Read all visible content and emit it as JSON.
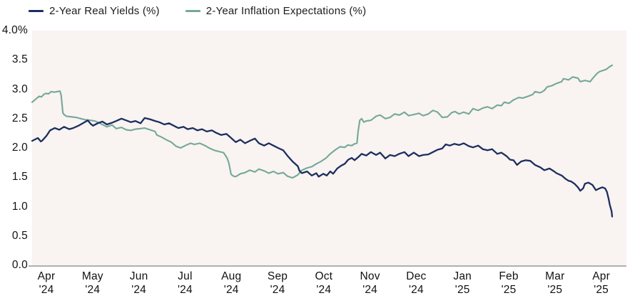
{
  "colors": {
    "navy": "#1b2e5f",
    "teal": "#74a89a",
    "plot_background": "#f9f3f1",
    "axis_line": "#b2aeac",
    "text": "#111111"
  },
  "chart_data": {
    "type": "line",
    "title": "",
    "xlabel": "",
    "ylabel": "",
    "y_unit": "percent",
    "ylim": [
      0.0,
      4.0
    ],
    "grid": false,
    "legend_position": "top-left",
    "x_axis_note": "time axis Apr 2024 through Apr 2025; series x stored as 0-1 fraction of plotted range",
    "x_tick_labels": [
      {
        "month": "Apr",
        "year": "'24"
      },
      {
        "month": "May",
        "year": "'24"
      },
      {
        "month": "Jun",
        "year": "'24"
      },
      {
        "month": "Jul",
        "year": "'24"
      },
      {
        "month": "Aug",
        "year": "'24"
      },
      {
        "month": "Sep",
        "year": "'24"
      },
      {
        "month": "Oct",
        "year": "'24"
      },
      {
        "month": "Nov",
        "year": "'24"
      },
      {
        "month": "Dec",
        "year": "'24"
      },
      {
        "month": "Jan",
        "year": "'25"
      },
      {
        "month": "Feb",
        "year": "'25"
      },
      {
        "month": "Mar",
        "year": "'25"
      },
      {
        "month": "Apr",
        "year": "'25"
      }
    ],
    "y_tick_labels": [
      {
        "text": "4.0%",
        "value": 4.0
      },
      {
        "text": "3.5",
        "value": 3.5
      },
      {
        "text": "3.0",
        "value": 3.0
      },
      {
        "text": "2.5",
        "value": 2.5
      },
      {
        "text": "2.0",
        "value": 2.0
      },
      {
        "text": "1.5",
        "value": 1.5
      },
      {
        "text": "1.0",
        "value": 1.0
      },
      {
        "text": "0.5",
        "value": 0.5
      },
      {
        "text": "0.0",
        "value": 0.0
      }
    ],
    "series": [
      {
        "name": "2-Year Real Yields (%)",
        "color": "#1b2e5f",
        "points": [
          [
            0.0,
            2.12
          ],
          [
            0.006,
            2.15
          ],
          [
            0.01,
            2.17
          ],
          [
            0.015,
            2.11
          ],
          [
            0.018,
            2.13
          ],
          [
            0.025,
            2.21
          ],
          [
            0.031,
            2.3
          ],
          [
            0.039,
            2.34
          ],
          [
            0.047,
            2.31
          ],
          [
            0.055,
            2.36
          ],
          [
            0.064,
            2.32
          ],
          [
            0.071,
            2.34
          ],
          [
            0.08,
            2.38
          ],
          [
            0.089,
            2.43
          ],
          [
            0.096,
            2.47
          ],
          [
            0.101,
            2.41
          ],
          [
            0.105,
            2.38
          ],
          [
            0.113,
            2.42
          ],
          [
            0.121,
            2.45
          ],
          [
            0.129,
            2.4
          ],
          [
            0.138,
            2.43
          ],
          [
            0.145,
            2.46
          ],
          [
            0.154,
            2.5
          ],
          [
            0.162,
            2.47
          ],
          [
            0.17,
            2.44
          ],
          [
            0.178,
            2.46
          ],
          [
            0.187,
            2.42
          ],
          [
            0.194,
            2.51
          ],
          [
            0.203,
            2.49
          ],
          [
            0.212,
            2.46
          ],
          [
            0.219,
            2.44
          ],
          [
            0.228,
            2.4
          ],
          [
            0.236,
            2.42
          ],
          [
            0.244,
            2.38
          ],
          [
            0.252,
            2.34
          ],
          [
            0.261,
            2.36
          ],
          [
            0.268,
            2.32
          ],
          [
            0.277,
            2.34
          ],
          [
            0.285,
            2.3
          ],
          [
            0.293,
            2.32
          ],
          [
            0.301,
            2.28
          ],
          [
            0.31,
            2.3
          ],
          [
            0.317,
            2.26
          ],
          [
            0.326,
            2.22
          ],
          [
            0.335,
            2.24
          ],
          [
            0.342,
            2.18
          ],
          [
            0.351,
            2.1
          ],
          [
            0.359,
            2.14
          ],
          [
            0.367,
            2.08
          ],
          [
            0.375,
            2.12
          ],
          [
            0.384,
            2.16
          ],
          [
            0.391,
            2.08
          ],
          [
            0.4,
            2.04
          ],
          [
            0.408,
            2.08
          ],
          [
            0.416,
            2.04
          ],
          [
            0.424,
            2.0
          ],
          [
            0.433,
            1.96
          ],
          [
            0.44,
            1.87
          ],
          [
            0.449,
            1.77
          ],
          [
            0.458,
            1.69
          ],
          [
            0.461,
            1.61
          ],
          [
            0.465,
            1.57
          ],
          [
            0.474,
            1.6
          ],
          [
            0.482,
            1.53
          ],
          [
            0.49,
            1.57
          ],
          [
            0.494,
            1.51
          ],
          [
            0.502,
            1.56
          ],
          [
            0.508,
            1.53
          ],
          [
            0.514,
            1.6
          ],
          [
            0.519,
            1.56
          ],
          [
            0.526,
            1.65
          ],
          [
            0.533,
            1.7
          ],
          [
            0.539,
            1.73
          ],
          [
            0.545,
            1.8
          ],
          [
            0.551,
            1.83
          ],
          [
            0.556,
            1.79
          ],
          [
            0.563,
            1.85
          ],
          [
            0.568,
            1.9
          ],
          [
            0.576,
            1.87
          ],
          [
            0.584,
            1.93
          ],
          [
            0.593,
            1.88
          ],
          [
            0.6,
            1.92
          ],
          [
            0.609,
            1.82
          ],
          [
            0.617,
            1.88
          ],
          [
            0.625,
            1.86
          ],
          [
            0.633,
            1.9
          ],
          [
            0.642,
            1.93
          ],
          [
            0.649,
            1.86
          ],
          [
            0.658,
            1.92
          ],
          [
            0.667,
            1.86
          ],
          [
            0.674,
            1.88
          ],
          [
            0.683,
            1.89
          ],
          [
            0.691,
            1.93
          ],
          [
            0.699,
            1.97
          ],
          [
            0.707,
            1.99
          ],
          [
            0.713,
            2.06
          ],
          [
            0.72,
            2.04
          ],
          [
            0.728,
            2.07
          ],
          [
            0.736,
            2.05
          ],
          [
            0.744,
            2.08
          ],
          [
            0.753,
            2.03
          ],
          [
            0.76,
            2.01
          ],
          [
            0.769,
            2.04
          ],
          [
            0.777,
            1.98
          ],
          [
            0.785,
            1.96
          ],
          [
            0.793,
            1.98
          ],
          [
            0.802,
            1.9
          ],
          [
            0.809,
            1.92
          ],
          [
            0.818,
            1.86
          ],
          [
            0.824,
            1.8
          ],
          [
            0.83,
            1.79
          ],
          [
            0.836,
            1.71
          ],
          [
            0.843,
            1.77
          ],
          [
            0.851,
            1.79
          ],
          [
            0.859,
            1.78
          ],
          [
            0.867,
            1.71
          ],
          [
            0.876,
            1.67
          ],
          [
            0.883,
            1.62
          ],
          [
            0.892,
            1.65
          ],
          [
            0.9,
            1.6
          ],
          [
            0.904,
            1.57
          ],
          [
            0.913,
            1.53
          ],
          [
            0.92,
            1.47
          ],
          [
            0.925,
            1.44
          ],
          [
            0.929,
            1.43
          ],
          [
            0.935,
            1.39
          ],
          [
            0.941,
            1.33
          ],
          [
            0.945,
            1.27
          ],
          [
            0.95,
            1.31
          ],
          [
            0.953,
            1.39
          ],
          [
            0.959,
            1.41
          ],
          [
            0.966,
            1.37
          ],
          [
            0.972,
            1.28
          ],
          [
            0.978,
            1.31
          ],
          [
            0.983,
            1.33
          ],
          [
            0.988,
            1.31
          ],
          [
            0.991,
            1.25
          ],
          [
            0.994,
            1.13
          ],
          [
            0.996,
            1.03
          ],
          [
            0.999,
            0.92
          ],
          [
            1.0,
            0.83
          ]
        ]
      },
      {
        "name": "2-Year Inflation Expectations (%)",
        "color": "#74a89a",
        "points": [
          [
            0.0,
            2.78
          ],
          [
            0.006,
            2.83
          ],
          [
            0.012,
            2.88
          ],
          [
            0.016,
            2.87
          ],
          [
            0.021,
            2.92
          ],
          [
            0.025,
            2.93
          ],
          [
            0.028,
            2.92
          ],
          [
            0.033,
            2.96
          ],
          [
            0.038,
            2.95
          ],
          [
            0.043,
            2.96
          ],
          [
            0.048,
            2.97
          ],
          [
            0.05,
            2.9
          ],
          [
            0.053,
            2.6
          ],
          [
            0.055,
            2.57
          ],
          [
            0.059,
            2.54
          ],
          [
            0.068,
            2.53
          ],
          [
            0.076,
            2.52
          ],
          [
            0.084,
            2.5
          ],
          [
            0.092,
            2.48
          ],
          [
            0.101,
            2.47
          ],
          [
            0.108,
            2.46
          ],
          [
            0.117,
            2.42
          ],
          [
            0.125,
            2.38
          ],
          [
            0.129,
            2.36
          ],
          [
            0.138,
            2.39
          ],
          [
            0.145,
            2.33
          ],
          [
            0.154,
            2.35
          ],
          [
            0.162,
            2.31
          ],
          [
            0.17,
            2.3
          ],
          [
            0.178,
            2.32
          ],
          [
            0.187,
            2.33
          ],
          [
            0.194,
            2.34
          ],
          [
            0.203,
            2.31
          ],
          [
            0.212,
            2.28
          ],
          [
            0.215,
            2.22
          ],
          [
            0.224,
            2.18
          ],
          [
            0.231,
            2.14
          ],
          [
            0.24,
            2.1
          ],
          [
            0.248,
            2.03
          ],
          [
            0.256,
            2.0
          ],
          [
            0.264,
            2.04
          ],
          [
            0.273,
            2.08
          ],
          [
            0.28,
            2.06
          ],
          [
            0.289,
            2.08
          ],
          [
            0.298,
            2.04
          ],
          [
            0.305,
            2.0
          ],
          [
            0.314,
            1.96
          ],
          [
            0.322,
            1.94
          ],
          [
            0.33,
            1.92
          ],
          [
            0.336,
            1.83
          ],
          [
            0.339,
            1.75
          ],
          [
            0.343,
            1.55
          ],
          [
            0.347,
            1.52
          ],
          [
            0.351,
            1.51
          ],
          [
            0.359,
            1.56
          ],
          [
            0.367,
            1.58
          ],
          [
            0.375,
            1.62
          ],
          [
            0.384,
            1.59
          ],
          [
            0.391,
            1.64
          ],
          [
            0.4,
            1.61
          ],
          [
            0.408,
            1.57
          ],
          [
            0.416,
            1.6
          ],
          [
            0.424,
            1.56
          ],
          [
            0.433,
            1.58
          ],
          [
            0.44,
            1.52
          ],
          [
            0.449,
            1.49
          ],
          [
            0.458,
            1.54
          ],
          [
            0.465,
            1.62
          ],
          [
            0.474,
            1.66
          ],
          [
            0.482,
            1.68
          ],
          [
            0.49,
            1.73
          ],
          [
            0.498,
            1.77
          ],
          [
            0.507,
            1.83
          ],
          [
            0.514,
            1.9
          ],
          [
            0.523,
            1.97
          ],
          [
            0.531,
            2.02
          ],
          [
            0.539,
            2.01
          ],
          [
            0.544,
            2.05
          ],
          [
            0.551,
            2.04
          ],
          [
            0.556,
            2.07
          ],
          [
            0.56,
            2.08
          ],
          [
            0.562,
            2.28
          ],
          [
            0.565,
            2.47
          ],
          [
            0.568,
            2.5
          ],
          [
            0.572,
            2.44
          ],
          [
            0.576,
            2.46
          ],
          [
            0.584,
            2.47
          ],
          [
            0.593,
            2.54
          ],
          [
            0.6,
            2.56
          ],
          [
            0.609,
            2.5
          ],
          [
            0.617,
            2.52
          ],
          [
            0.625,
            2.58
          ],
          [
            0.633,
            2.56
          ],
          [
            0.642,
            2.61
          ],
          [
            0.649,
            2.55
          ],
          [
            0.658,
            2.57
          ],
          [
            0.667,
            2.59
          ],
          [
            0.674,
            2.55
          ],
          [
            0.683,
            2.58
          ],
          [
            0.691,
            2.64
          ],
          [
            0.699,
            2.61
          ],
          [
            0.707,
            2.52
          ],
          [
            0.716,
            2.53
          ],
          [
            0.723,
            2.6
          ],
          [
            0.729,
            2.62
          ],
          [
            0.736,
            2.58
          ],
          [
            0.744,
            2.61
          ],
          [
            0.753,
            2.58
          ],
          [
            0.76,
            2.67
          ],
          [
            0.769,
            2.64
          ],
          [
            0.777,
            2.68
          ],
          [
            0.785,
            2.7
          ],
          [
            0.793,
            2.67
          ],
          [
            0.802,
            2.73
          ],
          [
            0.809,
            2.72
          ],
          [
            0.814,
            2.78
          ],
          [
            0.822,
            2.76
          ],
          [
            0.83,
            2.82
          ],
          [
            0.839,
            2.86
          ],
          [
            0.846,
            2.85
          ],
          [
            0.855,
            2.88
          ],
          [
            0.863,
            2.91
          ],
          [
            0.867,
            2.96
          ],
          [
            0.876,
            2.94
          ],
          [
            0.883,
            2.98
          ],
          [
            0.888,
            3.04
          ],
          [
            0.896,
            3.06
          ],
          [
            0.904,
            3.1
          ],
          [
            0.913,
            3.13
          ],
          [
            0.916,
            3.18
          ],
          [
            0.925,
            3.16
          ],
          [
            0.932,
            3.21
          ],
          [
            0.941,
            3.19
          ],
          [
            0.945,
            3.13
          ],
          [
            0.953,
            3.15
          ],
          [
            0.962,
            3.13
          ],
          [
            0.966,
            3.18
          ],
          [
            0.974,
            3.27
          ],
          [
            0.978,
            3.3
          ],
          [
            0.984,
            3.32
          ],
          [
            0.99,
            3.34
          ],
          [
            0.995,
            3.38
          ],
          [
            1.0,
            3.41
          ]
        ]
      }
    ]
  }
}
